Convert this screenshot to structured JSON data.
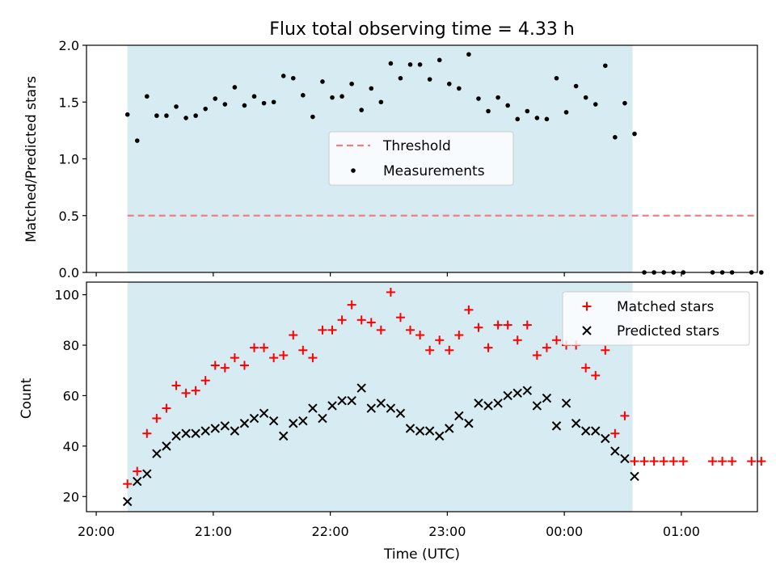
{
  "chart_data": [
    {
      "type": "scatter",
      "title": "Flux total observing time = 4.33 h",
      "xlabel": "",
      "ylabel": "Matched/Predicted stars",
      "ylim": [
        0,
        2.0
      ],
      "yticks": [
        "0.0",
        "0.5",
        "1.0",
        "1.5",
        "2.0"
      ],
      "legend": {
        "position": "center",
        "threshold_label": "Threshold",
        "measurements_label": "Measurements"
      },
      "threshold": {
        "value": 0.5,
        "x_start": "20:16",
        "x_end": "01:38"
      },
      "shaded_region": {
        "x_start": "20:16",
        "x_end": "00:35"
      },
      "series": [
        {
          "name": "Measurements",
          "x": [
            "20:16",
            "20:21",
            "20:26",
            "20:31",
            "20:36",
            "20:41",
            "20:46",
            "20:51",
            "20:56",
            "21:01",
            "21:06",
            "21:11",
            "21:16",
            "21:21",
            "21:26",
            "21:31",
            "21:36",
            "21:41",
            "21:46",
            "21:51",
            "21:56",
            "22:01",
            "22:06",
            "22:11",
            "22:16",
            "22:21",
            "22:26",
            "22:31",
            "22:36",
            "22:41",
            "22:46",
            "22:51",
            "22:56",
            "23:01",
            "23:06",
            "23:11",
            "23:16",
            "23:21",
            "23:26",
            "23:31",
            "23:36",
            "23:41",
            "23:46",
            "23:51",
            "23:56",
            "00:01",
            "00:06",
            "00:11",
            "00:16",
            "00:21",
            "00:26",
            "00:31",
            "00:36",
            "00:41",
            "00:46",
            "00:51",
            "00:56",
            "01:01",
            "01:16",
            "01:21",
            "01:26",
            "01:36",
            "01:41"
          ],
          "values": [
            1.39,
            1.16,
            1.55,
            1.38,
            1.38,
            1.46,
            1.36,
            1.38,
            1.44,
            1.53,
            1.48,
            1.63,
            1.47,
            1.55,
            1.49,
            1.5,
            1.73,
            1.71,
            1.56,
            1.37,
            1.68,
            1.54,
            1.55,
            1.66,
            1.43,
            1.62,
            1.5,
            1.84,
            1.71,
            1.83,
            1.83,
            1.7,
            1.87,
            1.66,
            1.62,
            1.92,
            1.53,
            1.42,
            1.54,
            1.47,
            1.35,
            1.42,
            1.36,
            1.35,
            1.71,
            1.41,
            1.64,
            1.54,
            1.48,
            1.82,
            1.19,
            1.49,
            1.22,
            0.0,
            0.0,
            0.0,
            0.0,
            0.0,
            0.0,
            0.0,
            0.0,
            0.0,
            0.0
          ],
          "color": "#000000"
        },
        {
          "name": "Threshold",
          "color": "#f08080"
        }
      ]
    },
    {
      "type": "scatter",
      "title": "",
      "xlabel": "Time (UTC)",
      "ylabel": "Count",
      "ylim": [
        14,
        105
      ],
      "yticks": [
        "20",
        "40",
        "60",
        "80",
        "100"
      ],
      "xticks": [
        "20:00",
        "21:00",
        "22:00",
        "23:00",
        "00:00",
        "01:00"
      ],
      "legend": {
        "position": "top-right"
      },
      "shaded_region": {
        "x_start": "20:16",
        "x_end": "00:35"
      },
      "x": [
        "20:16",
        "20:21",
        "20:26",
        "20:31",
        "20:36",
        "20:41",
        "20:46",
        "20:51",
        "20:56",
        "21:01",
        "21:06",
        "21:11",
        "21:16",
        "21:21",
        "21:26",
        "21:31",
        "21:36",
        "21:41",
        "21:46",
        "21:51",
        "21:56",
        "22:01",
        "22:06",
        "22:11",
        "22:16",
        "22:21",
        "22:26",
        "22:31",
        "22:36",
        "22:41",
        "22:46",
        "22:51",
        "22:56",
        "23:01",
        "23:06",
        "23:11",
        "23:16",
        "23:21",
        "23:26",
        "23:31",
        "23:36",
        "23:41",
        "23:46",
        "23:51",
        "23:56",
        "00:01",
        "00:06",
        "00:11",
        "00:16",
        "00:21",
        "00:26",
        "00:31",
        "00:36",
        "00:41",
        "00:46",
        "00:51",
        "00:56",
        "01:01",
        "01:16",
        "01:21",
        "01:26",
        "01:36",
        "01:41"
      ],
      "series": [
        {
          "name": "Matched stars",
          "marker": "plus",
          "color": "#ff0000",
          "values": [
            25,
            30,
            45,
            51,
            55,
            64,
            61,
            62,
            66,
            72,
            71,
            75,
            72,
            79,
            79,
            75,
            76,
            84,
            78,
            75,
            86,
            86,
            90,
            96,
            90,
            89,
            86,
            101,
            91,
            86,
            84,
            78,
            82,
            78,
            84,
            94,
            87,
            79,
            88,
            88,
            82,
            88,
            76,
            79,
            82,
            80,
            80,
            71,
            68,
            78,
            45,
            52,
            34,
            34,
            34,
            34,
            34,
            34,
            34,
            34,
            34,
            34,
            34
          ]
        },
        {
          "name": "Predicted stars",
          "marker": "x",
          "color": "#000000",
          "values": [
            18,
            26,
            29,
            37,
            40,
            44,
            45,
            45,
            46,
            47,
            48,
            46,
            49,
            51,
            53,
            50,
            44,
            49,
            50,
            55,
            51,
            56,
            58,
            58,
            63,
            55,
            57,
            55,
            53,
            47,
            46,
            46,
            44,
            47,
            52,
            49,
            57,
            56,
            57,
            60,
            61,
            62,
            56,
            59,
            48,
            57,
            49,
            46,
            46,
            43,
            38,
            35,
            28
          ]
        }
      ]
    }
  ]
}
